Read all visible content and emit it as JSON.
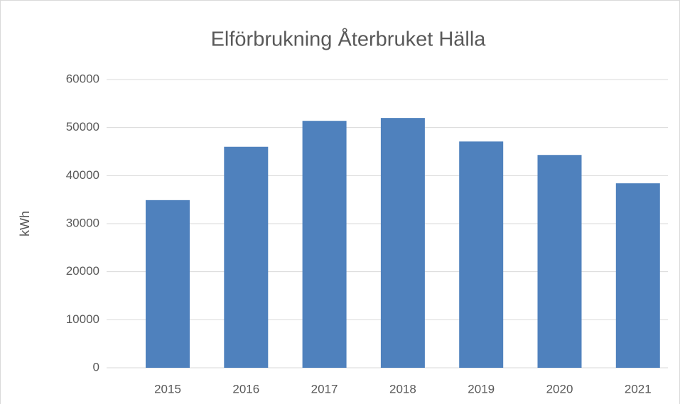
{
  "chart_data": {
    "type": "bar",
    "title": "Elförbrukning Återbruket Hälla",
    "y_label": "kWh",
    "categories": [
      "2015",
      "2016",
      "2017",
      "2018",
      "2019",
      "2020",
      "2021"
    ],
    "values": [
      34900,
      46000,
      51400,
      52000,
      47100,
      44300,
      38400
    ],
    "color": "#4f81bd",
    "ylim": [
      0,
      60000
    ],
    "yticks": [
      0,
      10000,
      20000,
      30000,
      40000,
      50000,
      60000
    ],
    "grid": true
  }
}
